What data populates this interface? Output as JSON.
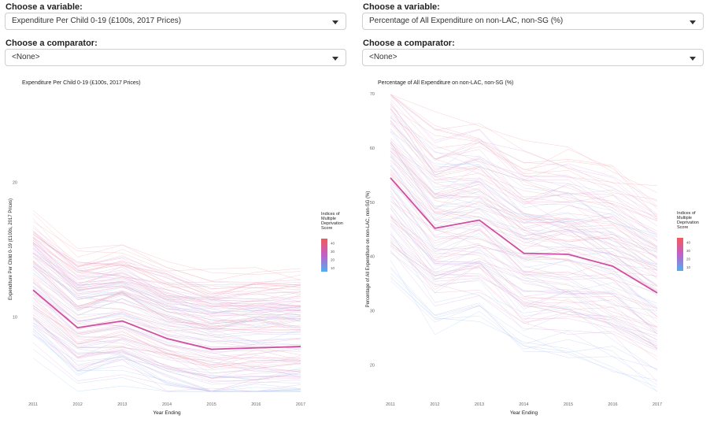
{
  "panels": [
    {
      "variable_label": "Choose a variable:",
      "variable_value": "Expenditure Per Child 0-19 (£100s, 2017 Prices)",
      "comparator_label": "Choose a comparator:",
      "comparator_value": "<None>"
    },
    {
      "variable_label": "Choose a variable:",
      "variable_value": "Percentage of All Expenditure on non-LAC, non-SG (%)",
      "comparator_label": "Choose a comparator:",
      "comparator_value": "<None>"
    }
  ],
  "icons": {
    "dropdown": "chevron-down-icon"
  },
  "chart_data": [
    {
      "type": "line",
      "title": "Expenditure Per Child 0-19 (£100s, 2017 Prices)",
      "xlabel": "Year Ending",
      "ylabel": "Expenditure Per Child 0-19 (£100s, 2017 Prices)",
      "x": [
        "2011",
        "2012",
        "2013",
        "2014",
        "2015",
        "2016",
        "2017"
      ],
      "yticks": [
        10,
        20
      ],
      "ylim": [
        4,
        27
      ],
      "highlight_series": [
        12,
        9.2,
        9.7,
        8.4,
        7.6,
        7.7,
        7.8
      ],
      "highlight_color": "#d04fa0",
      "background_series_note": "many faint lines, one per area, colored by deprivation score",
      "legend": {
        "title": "Indices of Multiple Deprivation Score",
        "ticks": [
          40,
          30,
          20,
          10
        ],
        "range": [
          5,
          45
        ],
        "colors": [
          "#f15a5a",
          "#c060c8",
          "#52aef0"
        ],
        "position": "right"
      }
    },
    {
      "type": "line",
      "title": "Percentage of All Expenditure on non-LAC, non-SG (%)",
      "xlabel": "Year Ending",
      "ylabel": "Percentage of All Expenditure on non-LAC, non-SG (%)",
      "x": [
        "2011",
        "2012",
        "2013",
        "2014",
        "2015",
        "2016",
        "2017"
      ],
      "yticks": [
        20,
        30,
        40,
        50,
        60,
        70
      ],
      "ylim": [
        14,
        71
      ],
      "highlight_series": [
        54.5,
        45.2,
        46.7,
        40.6,
        40.4,
        38.2,
        33.3
      ],
      "highlight_color": "#d04fa0",
      "background_series_note": "many faint lines, one per area, colored by deprivation score",
      "legend": {
        "title": "Indices of Multiple Deprivation Score",
        "ticks": [
          40,
          30,
          20,
          10
        ],
        "range": [
          5,
          45
        ],
        "colors": [
          "#f15a5a",
          "#c060c8",
          "#52aef0"
        ],
        "position": "right"
      }
    }
  ]
}
